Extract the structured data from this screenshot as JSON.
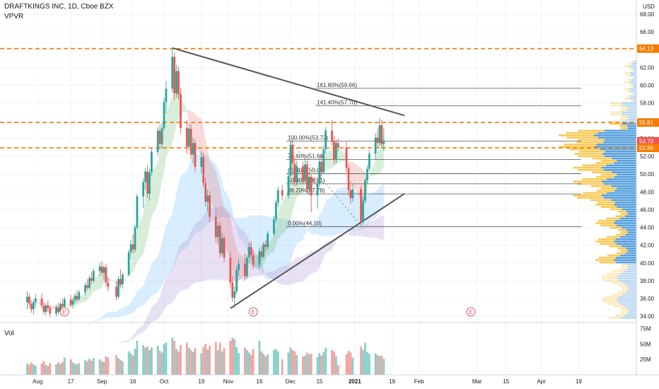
{
  "header": {
    "symbol": "DRAFTKINGS INC, 1D, Cboe BZX",
    "indicator": "VPVR",
    "currency": "USD"
  },
  "volume_pane": {
    "label": "Vol",
    "ticks": [
      "75M",
      "50M",
      "25M"
    ]
  },
  "colors": {
    "up": "#26a69a",
    "down": "#ef5350",
    "level_line": "#f57c00",
    "trendline": "#555555",
    "fib_line": "#555555",
    "vp_up": "#3f92d8",
    "vp_down": "#f7c342",
    "earnings": "#e05555"
  },
  "chart_data": {
    "type": "candlestick",
    "ylim": [
      33.3,
      69.6
    ],
    "y_ticks": [
      "68.00",
      "66.00",
      "64.00",
      "62.00",
      "60.00",
      "58.00",
      "56.00",
      "54.00",
      "52.00",
      "50.00",
      "48.00",
      "46.00",
      "44.00",
      "42.00",
      "40.00",
      "38.00",
      "36.00",
      "34.00"
    ],
    "x_ticks": [
      "Aug",
      "17",
      "Sep",
      "16",
      "Oct",
      "19",
      "Nov",
      "16",
      "Dec",
      "15",
      "2021",
      "19",
      "Feb",
      "Mar",
      "15",
      "Apr",
      "19"
    ],
    "price_labels": [
      {
        "text": "64.13",
        "value": 64.13,
        "color": "#f57c00"
      },
      {
        "text": "55.81",
        "value": 55.81,
        "color": "#f57c00"
      },
      {
        "text": "53.70",
        "value": 53.7,
        "color": "#ef5350"
      },
      {
        "text": "52.96",
        "value": 52.96,
        "color": "#f57c00"
      }
    ],
    "horizontal_levels": [
      64.13,
      55.81,
      52.96
    ],
    "fibonacci": [
      {
        "label": "161.80%(59.66)",
        "value": 59.66
      },
      {
        "label": "141.40%(57.70)",
        "value": 57.7
      },
      {
        "label": "100.00%(53.72)",
        "value": 53.72
      },
      {
        "label": "78.60%(51.66)",
        "value": 51.66
      },
      {
        "label": "61.80%(50.05)",
        "value": 50.05
      },
      {
        "label": "50.00%(48.91)",
        "value": 48.91
      },
      {
        "label": "38.20%(47.78)",
        "value": 47.78
      },
      {
        "label": "0.00%(44.10)",
        "value": 44.1
      }
    ],
    "trendlines": [
      {
        "from": [
          "2020-10-05",
          64.2
        ],
        "to": [
          "2021-01-25",
          56.6
        ]
      },
      {
        "from": [
          "2020-11-02",
          34.9
        ],
        "to": [
          "2021-01-25",
          47.8
        ]
      }
    ],
    "earnings_markers": [
      "2020-08-14",
      "2020-11-13",
      "2021-02-26"
    ],
    "candles": [
      {
        "date": "2020-07-27",
        "o": 35.6,
        "h": 36.8,
        "l": 34.8,
        "c": 36.2,
        "v": 18
      },
      {
        "date": "2020-07-28",
        "o": 36.2,
        "h": 36.6,
        "l": 35.0,
        "c": 35.4,
        "v": 16
      },
      {
        "date": "2020-07-29",
        "o": 35.4,
        "h": 35.8,
        "l": 34.4,
        "c": 34.8,
        "v": 20
      },
      {
        "date": "2020-07-30",
        "o": 34.8,
        "h": 35.9,
        "l": 34.2,
        "c": 35.6,
        "v": 17
      },
      {
        "date": "2020-07-31",
        "o": 35.6,
        "h": 36.5,
        "l": 35.0,
        "c": 36.0,
        "v": 15
      },
      {
        "date": "2020-08-03",
        "o": 36.0,
        "h": 36.6,
        "l": 34.9,
        "c": 35.2,
        "v": 18
      },
      {
        "date": "2020-08-04",
        "o": 35.2,
        "h": 35.6,
        "l": 34.2,
        "c": 34.5,
        "v": 22
      },
      {
        "date": "2020-08-05",
        "o": 34.5,
        "h": 35.5,
        "l": 34.1,
        "c": 35.2,
        "v": 16
      },
      {
        "date": "2020-08-06",
        "o": 35.2,
        "h": 35.8,
        "l": 34.5,
        "c": 34.9,
        "v": 14
      },
      {
        "date": "2020-08-07",
        "o": 34.9,
        "h": 35.2,
        "l": 33.9,
        "c": 34.3,
        "v": 19
      },
      {
        "date": "2020-08-10",
        "o": 34.3,
        "h": 35.3,
        "l": 34.0,
        "c": 35.0,
        "v": 17
      },
      {
        "date": "2020-08-11",
        "o": 35.0,
        "h": 35.5,
        "l": 34.2,
        "c": 34.5,
        "v": 20
      },
      {
        "date": "2020-08-12",
        "o": 34.5,
        "h": 35.6,
        "l": 34.3,
        "c": 35.4,
        "v": 18
      },
      {
        "date": "2020-08-13",
        "o": 35.4,
        "h": 36.0,
        "l": 34.8,
        "c": 35.1,
        "v": 21
      },
      {
        "date": "2020-08-14",
        "o": 35.1,
        "h": 36.2,
        "l": 34.6,
        "c": 35.9,
        "v": 28
      },
      {
        "date": "2020-08-17",
        "o": 35.9,
        "h": 36.4,
        "l": 35.0,
        "c": 35.3,
        "v": 25
      },
      {
        "date": "2020-08-18",
        "o": 35.3,
        "h": 36.1,
        "l": 34.9,
        "c": 35.8,
        "v": 20
      },
      {
        "date": "2020-08-19",
        "o": 35.8,
        "h": 36.6,
        "l": 35.4,
        "c": 36.3,
        "v": 18
      },
      {
        "date": "2020-08-20",
        "o": 36.3,
        "h": 36.9,
        "l": 35.6,
        "c": 35.9,
        "v": 17
      },
      {
        "date": "2020-08-21",
        "o": 35.9,
        "h": 37.0,
        "l": 35.7,
        "c": 36.7,
        "v": 19
      },
      {
        "date": "2020-08-24",
        "o": 36.7,
        "h": 37.8,
        "l": 36.4,
        "c": 37.5,
        "v": 24
      },
      {
        "date": "2020-08-25",
        "o": 37.5,
        "h": 38.2,
        "l": 36.9,
        "c": 37.2,
        "v": 22
      },
      {
        "date": "2020-08-26",
        "o": 37.2,
        "h": 38.6,
        "l": 37.0,
        "c": 38.3,
        "v": 26
      },
      {
        "date": "2020-08-27",
        "o": 38.3,
        "h": 39.0,
        "l": 37.6,
        "c": 38.0,
        "v": 23
      },
      {
        "date": "2020-08-28",
        "o": 38.0,
        "h": 39.4,
        "l": 37.8,
        "c": 39.1,
        "v": 27
      },
      {
        "date": "2020-08-31",
        "o": 39.1,
        "h": 40.0,
        "l": 38.5,
        "c": 39.6,
        "v": 25
      },
      {
        "date": "2020-09-01",
        "o": 39.6,
        "h": 40.2,
        "l": 38.6,
        "c": 38.9,
        "v": 22
      },
      {
        "date": "2020-09-02",
        "o": 38.9,
        "h": 39.8,
        "l": 38.1,
        "c": 39.5,
        "v": 21
      },
      {
        "date": "2020-09-03",
        "o": 39.5,
        "h": 39.9,
        "l": 37.4,
        "c": 37.8,
        "v": 30
      },
      {
        "date": "2020-09-04",
        "o": 37.8,
        "h": 38.4,
        "l": 36.8,
        "c": 37.3,
        "v": 28
      },
      {
        "date": "2020-09-08",
        "o": 37.3,
        "h": 37.9,
        "l": 35.8,
        "c": 36.2,
        "v": 32
      },
      {
        "date": "2020-09-09",
        "o": 36.2,
        "h": 38.5,
        "l": 36.0,
        "c": 38.2,
        "v": 27
      },
      {
        "date": "2020-09-10",
        "o": 38.2,
        "h": 39.3,
        "l": 37.2,
        "c": 37.6,
        "v": 24
      },
      {
        "date": "2020-09-11",
        "o": 37.6,
        "h": 38.9,
        "l": 37.1,
        "c": 38.7,
        "v": 22
      },
      {
        "date": "2020-09-14",
        "o": 38.7,
        "h": 41.5,
        "l": 38.5,
        "c": 41.2,
        "v": 38
      },
      {
        "date": "2020-09-15",
        "o": 41.2,
        "h": 42.6,
        "l": 40.4,
        "c": 42.1,
        "v": 35
      },
      {
        "date": "2020-09-16",
        "o": 42.1,
        "h": 43.2,
        "l": 41.0,
        "c": 41.5,
        "v": 31
      },
      {
        "date": "2020-09-17",
        "o": 41.5,
        "h": 44.3,
        "l": 41.2,
        "c": 44.0,
        "v": 42
      },
      {
        "date": "2020-09-18",
        "o": 44.0,
        "h": 47.8,
        "l": 43.8,
        "c": 47.5,
        "v": 55
      },
      {
        "date": "2020-09-21",
        "o": 47.5,
        "h": 49.5,
        "l": 46.2,
        "c": 49.1,
        "v": 48
      },
      {
        "date": "2020-09-22",
        "o": 49.1,
        "h": 50.7,
        "l": 48.2,
        "c": 50.3,
        "v": 44
      },
      {
        "date": "2020-09-23",
        "o": 50.3,
        "h": 51.0,
        "l": 47.3,
        "c": 47.8,
        "v": 46
      },
      {
        "date": "2020-09-24",
        "o": 47.8,
        "h": 50.6,
        "l": 47.0,
        "c": 50.2,
        "v": 40
      },
      {
        "date": "2020-09-25",
        "o": 50.2,
        "h": 52.9,
        "l": 49.8,
        "c": 52.5,
        "v": 45
      },
      {
        "date": "2020-09-28",
        "o": 52.5,
        "h": 55.3,
        "l": 52.1,
        "c": 54.9,
        "v": 47
      },
      {
        "date": "2020-09-29",
        "o": 54.9,
        "h": 55.6,
        "l": 52.8,
        "c": 53.4,
        "v": 39
      },
      {
        "date": "2020-09-30",
        "o": 53.4,
        "h": 55.8,
        "l": 52.9,
        "c": 55.2,
        "v": 36
      },
      {
        "date": "2020-10-01",
        "o": 55.2,
        "h": 58.6,
        "l": 54.9,
        "c": 58.1,
        "v": 50
      },
      {
        "date": "2020-10-02",
        "o": 58.1,
        "h": 60.5,
        "l": 56.8,
        "c": 59.6,
        "v": 52
      },
      {
        "date": "2020-10-05",
        "o": 59.6,
        "h": 64.13,
        "l": 59.2,
        "c": 63.2,
        "v": 60
      },
      {
        "date": "2020-10-06",
        "o": 63.2,
        "h": 63.7,
        "l": 58.3,
        "c": 59.1,
        "v": 55
      },
      {
        "date": "2020-10-07",
        "o": 59.1,
        "h": 62.3,
        "l": 58.6,
        "c": 61.6,
        "v": 42
      },
      {
        "date": "2020-10-08",
        "o": 61.6,
        "h": 62.1,
        "l": 58.4,
        "c": 59.0,
        "v": 38
      },
      {
        "date": "2020-10-09",
        "o": 59.0,
        "h": 59.7,
        "l": 54.6,
        "c": 55.2,
        "v": 48
      },
      {
        "date": "2020-10-12",
        "o": 55.2,
        "h": 56.1,
        "l": 52.3,
        "c": 53.1,
        "v": 52
      },
      {
        "date": "2020-10-13",
        "o": 53.1,
        "h": 55.7,
        "l": 52.7,
        "c": 55.1,
        "v": 44
      },
      {
        "date": "2020-10-14",
        "o": 55.1,
        "h": 55.6,
        "l": 51.7,
        "c": 52.2,
        "v": 40
      },
      {
        "date": "2020-10-15",
        "o": 52.2,
        "h": 54.1,
        "l": 51.2,
        "c": 53.5,
        "v": 37
      },
      {
        "date": "2020-10-16",
        "o": 53.5,
        "h": 53.9,
        "l": 50.3,
        "c": 50.8,
        "v": 43
      },
      {
        "date": "2020-10-19",
        "o": 50.8,
        "h": 52.6,
        "l": 50.1,
        "c": 51.9,
        "v": 35
      },
      {
        "date": "2020-10-20",
        "o": 51.9,
        "h": 52.4,
        "l": 48.5,
        "c": 49.0,
        "v": 45
      },
      {
        "date": "2020-10-21",
        "o": 49.0,
        "h": 49.6,
        "l": 46.3,
        "c": 46.9,
        "v": 50
      },
      {
        "date": "2020-10-22",
        "o": 46.9,
        "h": 48.3,
        "l": 45.8,
        "c": 47.6,
        "v": 41
      },
      {
        "date": "2020-10-23",
        "o": 47.6,
        "h": 48.1,
        "l": 44.6,
        "c": 45.2,
        "v": 47
      },
      {
        "date": "2020-10-26",
        "o": 45.2,
        "h": 45.9,
        "l": 42.3,
        "c": 42.9,
        "v": 53
      },
      {
        "date": "2020-10-27",
        "o": 42.9,
        "h": 44.7,
        "l": 42.1,
        "c": 44.2,
        "v": 40
      },
      {
        "date": "2020-10-28",
        "o": 44.2,
        "h": 44.6,
        "l": 40.6,
        "c": 41.1,
        "v": 52
      },
      {
        "date": "2020-10-29",
        "o": 41.1,
        "h": 43.4,
        "l": 40.8,
        "c": 42.8,
        "v": 38
      },
      {
        "date": "2020-10-30",
        "o": 42.8,
        "h": 43.1,
        "l": 40.1,
        "c": 40.6,
        "v": 43
      },
      {
        "date": "2020-11-02",
        "o": 40.6,
        "h": 41.2,
        "l": 37.2,
        "c": 37.8,
        "v": 55
      },
      {
        "date": "2020-11-03",
        "o": 37.8,
        "h": 38.6,
        "l": 35.6,
        "c": 36.1,
        "v": 60
      },
      {
        "date": "2020-11-04",
        "o": 36.1,
        "h": 37.4,
        "l": 34.9,
        "c": 36.8,
        "v": 58
      },
      {
        "date": "2020-11-05",
        "o": 36.8,
        "h": 39.6,
        "l": 36.5,
        "c": 39.2,
        "v": 45
      },
      {
        "date": "2020-11-06",
        "o": 39.2,
        "h": 40.4,
        "l": 38.5,
        "c": 39.9,
        "v": 35
      },
      {
        "date": "2020-11-09",
        "o": 39.9,
        "h": 41.1,
        "l": 38.0,
        "c": 38.5,
        "v": 44
      },
      {
        "date": "2020-11-10",
        "o": 38.5,
        "h": 40.9,
        "l": 38.2,
        "c": 40.6,
        "v": 40
      },
      {
        "date": "2020-11-11",
        "o": 40.6,
        "h": 42.3,
        "l": 40.0,
        "c": 41.8,
        "v": 36
      },
      {
        "date": "2020-11-12",
        "o": 41.8,
        "h": 42.5,
        "l": 40.3,
        "c": 40.9,
        "v": 32
      },
      {
        "date": "2020-11-13",
        "o": 40.9,
        "h": 41.5,
        "l": 39.3,
        "c": 39.8,
        "v": 42
      },
      {
        "date": "2020-11-16",
        "o": 39.8,
        "h": 41.7,
        "l": 39.4,
        "c": 41.3,
        "v": 55
      },
      {
        "date": "2020-11-17",
        "o": 41.3,
        "h": 41.9,
        "l": 40.2,
        "c": 40.7,
        "v": 38
      },
      {
        "date": "2020-11-18",
        "o": 40.7,
        "h": 42.4,
        "l": 40.5,
        "c": 42.1,
        "v": 34
      },
      {
        "date": "2020-11-19",
        "o": 42.1,
        "h": 42.6,
        "l": 41.3,
        "c": 41.8,
        "v": 30
      },
      {
        "date": "2020-11-20",
        "o": 41.8,
        "h": 43.6,
        "l": 41.5,
        "c": 43.3,
        "v": 33
      },
      {
        "date": "2020-11-23",
        "o": 43.3,
        "h": 45.3,
        "l": 43.0,
        "c": 44.9,
        "v": 40
      },
      {
        "date": "2020-11-24",
        "o": 44.9,
        "h": 47.1,
        "l": 44.5,
        "c": 46.8,
        "v": 42
      },
      {
        "date": "2020-11-25",
        "o": 46.8,
        "h": 48.6,
        "l": 46.3,
        "c": 48.2,
        "v": 38
      },
      {
        "date": "2020-11-27",
        "o": 48.2,
        "h": 48.8,
        "l": 47.1,
        "c": 47.6,
        "v": 25
      },
      {
        "date": "2020-11-30",
        "o": 47.6,
        "h": 50.3,
        "l": 47.2,
        "c": 49.8,
        "v": 36
      },
      {
        "date": "2020-12-01",
        "o": 49.8,
        "h": 53.8,
        "l": 49.5,
        "c": 53.3,
        "v": 44
      },
      {
        "date": "2020-12-02",
        "o": 53.3,
        "h": 53.9,
        "l": 50.6,
        "c": 51.2,
        "v": 40
      },
      {
        "date": "2020-12-03",
        "o": 51.2,
        "h": 51.9,
        "l": 48.6,
        "c": 49.1,
        "v": 38
      },
      {
        "date": "2020-12-04",
        "o": 49.1,
        "h": 51.5,
        "l": 48.7,
        "c": 50.9,
        "v": 32
      },
      {
        "date": "2020-12-07",
        "o": 50.9,
        "h": 51.4,
        "l": 48.9,
        "c": 49.4,
        "v": 30
      },
      {
        "date": "2020-12-08",
        "o": 49.4,
        "h": 51.6,
        "l": 49.1,
        "c": 51.1,
        "v": 31
      },
      {
        "date": "2020-12-09",
        "o": 51.1,
        "h": 51.5,
        "l": 47.9,
        "c": 48.3,
        "v": 36
      },
      {
        "date": "2020-12-10",
        "o": 48.3,
        "h": 50.2,
        "l": 47.6,
        "c": 49.7,
        "v": 33
      },
      {
        "date": "2020-12-11",
        "o": 49.7,
        "h": 50.1,
        "l": 45.7,
        "c": 47.6,
        "v": 34
      },
      {
        "date": "2020-12-14",
        "o": 47.6,
        "h": 49.3,
        "l": 46.1,
        "c": 48.9,
        "v": 29
      },
      {
        "date": "2020-12-15",
        "o": 48.9,
        "h": 51.8,
        "l": 48.6,
        "c": 51.4,
        "v": 35
      },
      {
        "date": "2020-12-16",
        "o": 51.4,
        "h": 52.1,
        "l": 49.8,
        "c": 50.3,
        "v": 31
      },
      {
        "date": "2020-12-17",
        "o": 50.3,
        "h": 53.2,
        "l": 50.0,
        "c": 52.8,
        "v": 37
      },
      {
        "date": "2020-12-18",
        "o": 52.8,
        "h": 55.3,
        "l": 52.3,
        "c": 54.9,
        "v": 44
      },
      {
        "date": "2020-12-21",
        "o": 54.9,
        "h": 56.1,
        "l": 53.2,
        "c": 53.7,
        "v": 40
      },
      {
        "date": "2020-12-22",
        "o": 53.7,
        "h": 54.3,
        "l": 51.1,
        "c": 51.6,
        "v": 38
      },
      {
        "date": "2020-12-23",
        "o": 51.6,
        "h": 53.9,
        "l": 51.2,
        "c": 53.5,
        "v": 30
      },
      {
        "date": "2020-12-24",
        "o": 53.5,
        "h": 54.0,
        "l": 52.6,
        "c": 53.0,
        "v": 16
      },
      {
        "date": "2020-12-28",
        "o": 53.0,
        "h": 53.6,
        "l": 50.2,
        "c": 50.7,
        "v": 33
      },
      {
        "date": "2020-12-29",
        "o": 50.7,
        "h": 51.2,
        "l": 47.6,
        "c": 48.2,
        "v": 39
      },
      {
        "date": "2020-12-30",
        "o": 48.2,
        "h": 49.3,
        "l": 46.7,
        "c": 47.3,
        "v": 36
      },
      {
        "date": "2020-12-31",
        "o": 47.3,
        "h": 48.9,
        "l": 46.9,
        "c": 48.3,
        "v": 28
      },
      {
        "date": "2021-01-04",
        "o": 48.3,
        "h": 48.7,
        "l": 44.1,
        "c": 44.6,
        "v": 46
      },
      {
        "date": "2021-01-05",
        "o": 44.6,
        "h": 47.4,
        "l": 44.3,
        "c": 47.0,
        "v": 40
      },
      {
        "date": "2021-01-06",
        "o": 47.0,
        "h": 49.6,
        "l": 46.7,
        "c": 49.3,
        "v": 52
      },
      {
        "date": "2021-01-07",
        "o": 49.3,
        "h": 51.0,
        "l": 48.9,
        "c": 50.6,
        "v": 37
      },
      {
        "date": "2021-01-08",
        "o": 50.6,
        "h": 52.7,
        "l": 50.3,
        "c": 52.3,
        "v": 34
      },
      {
        "date": "2021-01-11",
        "o": 52.3,
        "h": 54.6,
        "l": 51.6,
        "c": 54.1,
        "v": 35
      },
      {
        "date": "2021-01-12",
        "o": 54.1,
        "h": 55.1,
        "l": 53.0,
        "c": 53.5,
        "v": 32
      },
      {
        "date": "2021-01-13",
        "o": 53.5,
        "h": 56.3,
        "l": 53.2,
        "c": 55.5,
        "v": 30
      },
      {
        "date": "2021-01-14",
        "o": 55.5,
        "h": 56.1,
        "l": 52.9,
        "c": 53.4,
        "v": 31
      },
      {
        "date": "2021-01-15",
        "o": 53.4,
        "h": 55.2,
        "l": 52.6,
        "c": 53.7,
        "v": 26
      }
    ]
  }
}
